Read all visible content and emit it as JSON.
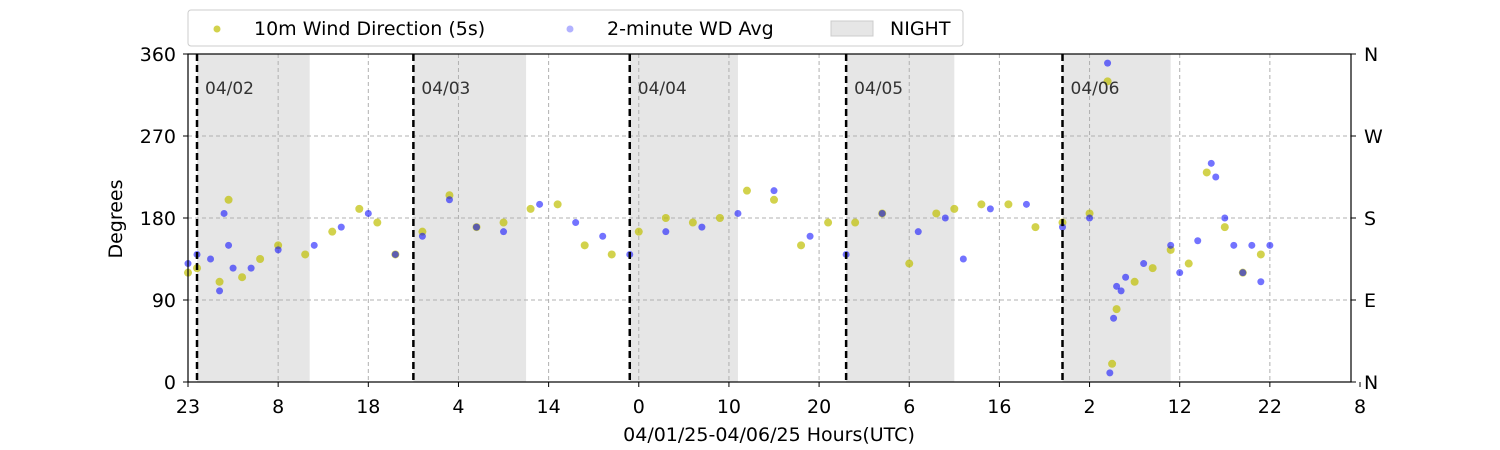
{
  "chart_data": {
    "type": "scatter",
    "xlabel": "04/01/25-04/06/25  Hours(UTC)",
    "ylabel": "Degrees",
    "ylim": [
      0,
      360
    ],
    "yticks": [
      0,
      90,
      180,
      270,
      360
    ],
    "right_ticks": [
      {
        "value": 0,
        "label": "N"
      },
      {
        "value": 90,
        "label": "E"
      },
      {
        "value": 180,
        "label": "S"
      },
      {
        "value": 270,
        "label": "W"
      },
      {
        "value": 360,
        "label": "N"
      }
    ],
    "x_axis": {
      "start": "2025-04-01 23:00 UTC",
      "end": "2025-04-07 08:00 UTC",
      "tick_step_hours": 10,
      "tick_labels": [
        "23",
        "8",
        "18",
        "4",
        "14",
        "0",
        "10",
        "20",
        "6",
        "16",
        "2",
        "12",
        "22",
        "8"
      ]
    },
    "legend": {
      "placement": "top-center",
      "items": [
        {
          "label": "10m Wind Direction (5s)",
          "color": "#bfbf00",
          "kind": "point"
        },
        {
          "label": "2-minute WD Avg",
          "color": "#0000ff",
          "kind": "point"
        },
        {
          "label": "NIGHT",
          "color": "#e6e6e6",
          "kind": "patch"
        }
      ]
    },
    "night_bands": [
      {
        "start": "2025-04-02 00:00",
        "end": "2025-04-02 12:30"
      },
      {
        "start": "2025-04-03 00:00",
        "end": "2025-04-03 12:30"
      },
      {
        "start": "2025-04-04 00:00",
        "end": "2025-04-04 12:00"
      },
      {
        "start": "2025-04-05 00:00",
        "end": "2025-04-05 12:00"
      },
      {
        "start": "2025-04-06 00:00",
        "end": "2025-04-06 12:00"
      }
    ],
    "day_markers": [
      {
        "time": "2025-04-02 00:00",
        "label": "04/02"
      },
      {
        "time": "2025-04-03 00:00",
        "label": "04/03"
      },
      {
        "time": "2025-04-04 00:00",
        "label": "04/04"
      },
      {
        "time": "2025-04-05 00:00",
        "label": "04/05"
      },
      {
        "time": "2025-04-06 00:00",
        "label": "04/06"
      }
    ],
    "grid": true,
    "series": [
      {
        "name": "2-minute WD Avg",
        "color": "#0000ff",
        "x": [
          "2025-04-01 23:00",
          "2025-04-02 00:00",
          "2025-04-02 01:30",
          "2025-04-02 02:30",
          "2025-04-02 03:00",
          "2025-04-02 03:30",
          "2025-04-02 04:00",
          "2025-04-02 06:00",
          "2025-04-02 09:00",
          "2025-04-02 13:00",
          "2025-04-02 16:00",
          "2025-04-02 19:00",
          "2025-04-02 22:00",
          "2025-04-03 01:00",
          "2025-04-03 04:00",
          "2025-04-03 07:00",
          "2025-04-03 10:00",
          "2025-04-03 14:00",
          "2025-04-03 18:00",
          "2025-04-03 21:00",
          "2025-04-04 00:00",
          "2025-04-04 04:00",
          "2025-04-04 08:00",
          "2025-04-04 12:00",
          "2025-04-04 16:00",
          "2025-04-04 20:00",
          "2025-04-05 00:00",
          "2025-04-05 04:00",
          "2025-04-05 08:00",
          "2025-04-05 11:00",
          "2025-04-05 13:00",
          "2025-04-05 16:00",
          "2025-04-05 20:00",
          "2025-04-06 00:00",
          "2025-04-06 03:00",
          "2025-04-06 05:00",
          "2025-04-06 05:15",
          "2025-04-06 05:40",
          "2025-04-06 06:00",
          "2025-04-06 06:30",
          "2025-04-06 07:00",
          "2025-04-06 09:00",
          "2025-04-06 12:00",
          "2025-04-06 13:00",
          "2025-04-06 15:00",
          "2025-04-06 16:30",
          "2025-04-06 17:00",
          "2025-04-06 18:00",
          "2025-04-06 19:00",
          "2025-04-06 20:00",
          "2025-04-06 21:00",
          "2025-04-06 22:00",
          "2025-04-06 23:00"
        ],
        "y": [
          130,
          140,
          135,
          100,
          185,
          150,
          125,
          125,
          145,
          150,
          170,
          185,
          140,
          160,
          200,
          170,
          165,
          195,
          175,
          160,
          140,
          165,
          170,
          185,
          210,
          160,
          140,
          185,
          165,
          180,
          135,
          190,
          195,
          170,
          180,
          350,
          10,
          70,
          105,
          100,
          115,
          130,
          150,
          120,
          155,
          240,
          225,
          180,
          150,
          120,
          150,
          110,
          150
        ]
      },
      {
        "name": "10m Wind Direction (5s)",
        "color": "#bfbf00",
        "x": [
          "2025-04-01 23:00",
          "2025-04-02 00:00",
          "2025-04-02 02:30",
          "2025-04-02 03:30",
          "2025-04-02 05:00",
          "2025-04-02 07:00",
          "2025-04-02 09:00",
          "2025-04-02 12:00",
          "2025-04-02 15:00",
          "2025-04-02 18:00",
          "2025-04-02 20:00",
          "2025-04-02 22:00",
          "2025-04-03 01:00",
          "2025-04-03 04:00",
          "2025-04-03 07:00",
          "2025-04-03 10:00",
          "2025-04-03 13:00",
          "2025-04-03 16:00",
          "2025-04-03 19:00",
          "2025-04-03 22:00",
          "2025-04-04 01:00",
          "2025-04-04 04:00",
          "2025-04-04 07:00",
          "2025-04-04 10:00",
          "2025-04-04 13:00",
          "2025-04-04 16:00",
          "2025-04-04 19:00",
          "2025-04-04 22:00",
          "2025-04-05 01:00",
          "2025-04-05 04:00",
          "2025-04-05 07:00",
          "2025-04-05 10:00",
          "2025-04-05 12:00",
          "2025-04-05 15:00",
          "2025-04-05 18:00",
          "2025-04-05 21:00",
          "2025-04-06 00:00",
          "2025-04-06 03:00",
          "2025-04-06 05:00",
          "2025-04-06 05:30",
          "2025-04-06 06:00",
          "2025-04-06 08:00",
          "2025-04-06 10:00",
          "2025-04-06 12:00",
          "2025-04-06 14:00",
          "2025-04-06 16:00",
          "2025-04-06 18:00",
          "2025-04-06 20:00",
          "2025-04-06 22:00"
        ],
        "y": [
          120,
          125,
          110,
          200,
          115,
          135,
          150,
          140,
          165,
          190,
          175,
          140,
          165,
          205,
          170,
          175,
          190,
          195,
          150,
          140,
          165,
          180,
          175,
          180,
          210,
          200,
          150,
          175,
          175,
          185,
          130,
          185,
          190,
          195,
          195,
          170,
          175,
          185,
          330,
          20,
          80,
          110,
          125,
          145,
          130,
          230,
          170,
          120,
          140
        ]
      }
    ]
  }
}
